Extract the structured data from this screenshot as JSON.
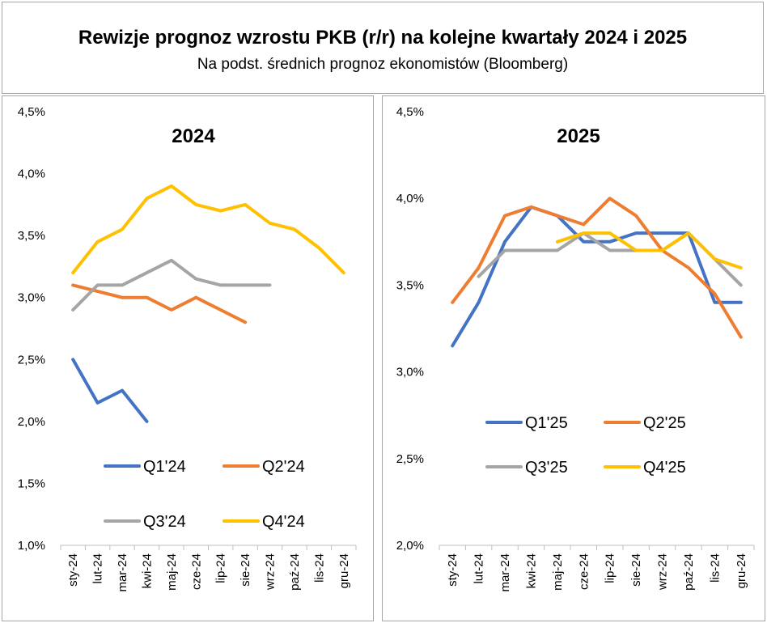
{
  "header": {
    "title": "Rewizje prognoz wzrostu PKB (r/r) na kolejne kwartały 2024 i 2025",
    "subtitle": "Na podst. średnich prognoz ekonomistów (Bloomberg)"
  },
  "chart_data": [
    {
      "type": "line",
      "title": "2024",
      "xlabel": "",
      "ylabel": "",
      "categories": [
        "sty-24",
        "lut-24",
        "mar-24",
        "kwi-24",
        "maj-24",
        "cze-24",
        "lip-24",
        "sie-24",
        "wrz-24",
        "paź-24",
        "lis-24",
        "gru-24"
      ],
      "ylim": [
        1.0,
        4.5
      ],
      "yticks": [
        "1,0%",
        "1,5%",
        "2,0%",
        "2,5%",
        "3,0%",
        "3,5%",
        "4,0%",
        "4,5%"
      ],
      "grid": false,
      "legend_position": "bottom",
      "series": [
        {
          "name": "Q1'24",
          "color": "#4472c4",
          "values": [
            2.5,
            2.15,
            2.25,
            2.0,
            null,
            null,
            null,
            null,
            null,
            null,
            null,
            null
          ]
        },
        {
          "name": "Q2'24",
          "color": "#ed7d31",
          "values": [
            3.1,
            3.05,
            3.0,
            3.0,
            2.9,
            3.0,
            2.9,
            2.8,
            null,
            null,
            null,
            null
          ]
        },
        {
          "name": "Q3'24",
          "color": "#a5a5a5",
          "values": [
            2.9,
            3.1,
            3.1,
            3.2,
            3.3,
            3.15,
            3.1,
            3.1,
            3.1,
            null,
            null,
            null
          ]
        },
        {
          "name": "Q4'24",
          "color": "#ffc000",
          "values": [
            3.2,
            3.45,
            3.55,
            3.8,
            3.9,
            3.75,
            3.7,
            3.75,
            3.6,
            3.55,
            3.4,
            3.2
          ]
        }
      ]
    },
    {
      "type": "line",
      "title": "2025",
      "xlabel": "",
      "ylabel": "",
      "categories": [
        "sty-24",
        "lut-24",
        "mar-24",
        "kwi-24",
        "maj-24",
        "cze-24",
        "lip-24",
        "sie-24",
        "wrz-24",
        "paź-24",
        "lis-24",
        "gru-24"
      ],
      "ylim": [
        2.0,
        4.5
      ],
      "yticks": [
        "2,0%",
        "2,5%",
        "3,0%",
        "3,5%",
        "4,0%",
        "4,5%"
      ],
      "grid": false,
      "legend_position": "right-middle",
      "series": [
        {
          "name": "Q1'25",
          "color": "#4472c4",
          "values": [
            3.15,
            3.4,
            3.75,
            3.95,
            3.9,
            3.75,
            3.75,
            3.8,
            3.8,
            3.8,
            3.4,
            3.4
          ]
        },
        {
          "name": "Q2'25",
          "color": "#ed7d31",
          "values": [
            3.4,
            3.6,
            3.9,
            3.95,
            3.9,
            3.85,
            4.0,
            3.9,
            3.7,
            3.6,
            3.45,
            3.2
          ]
        },
        {
          "name": "Q3'25",
          "color": "#a5a5a5",
          "values": [
            null,
            3.55,
            3.7,
            3.7,
            3.7,
            3.8,
            3.7,
            3.7,
            3.7,
            3.8,
            3.65,
            3.5
          ]
        },
        {
          "name": "Q4'25",
          "color": "#ffc000",
          "values": [
            null,
            null,
            null,
            null,
            3.75,
            3.8,
            3.8,
            3.7,
            3.7,
            3.8,
            3.65,
            3.6
          ]
        }
      ]
    }
  ]
}
